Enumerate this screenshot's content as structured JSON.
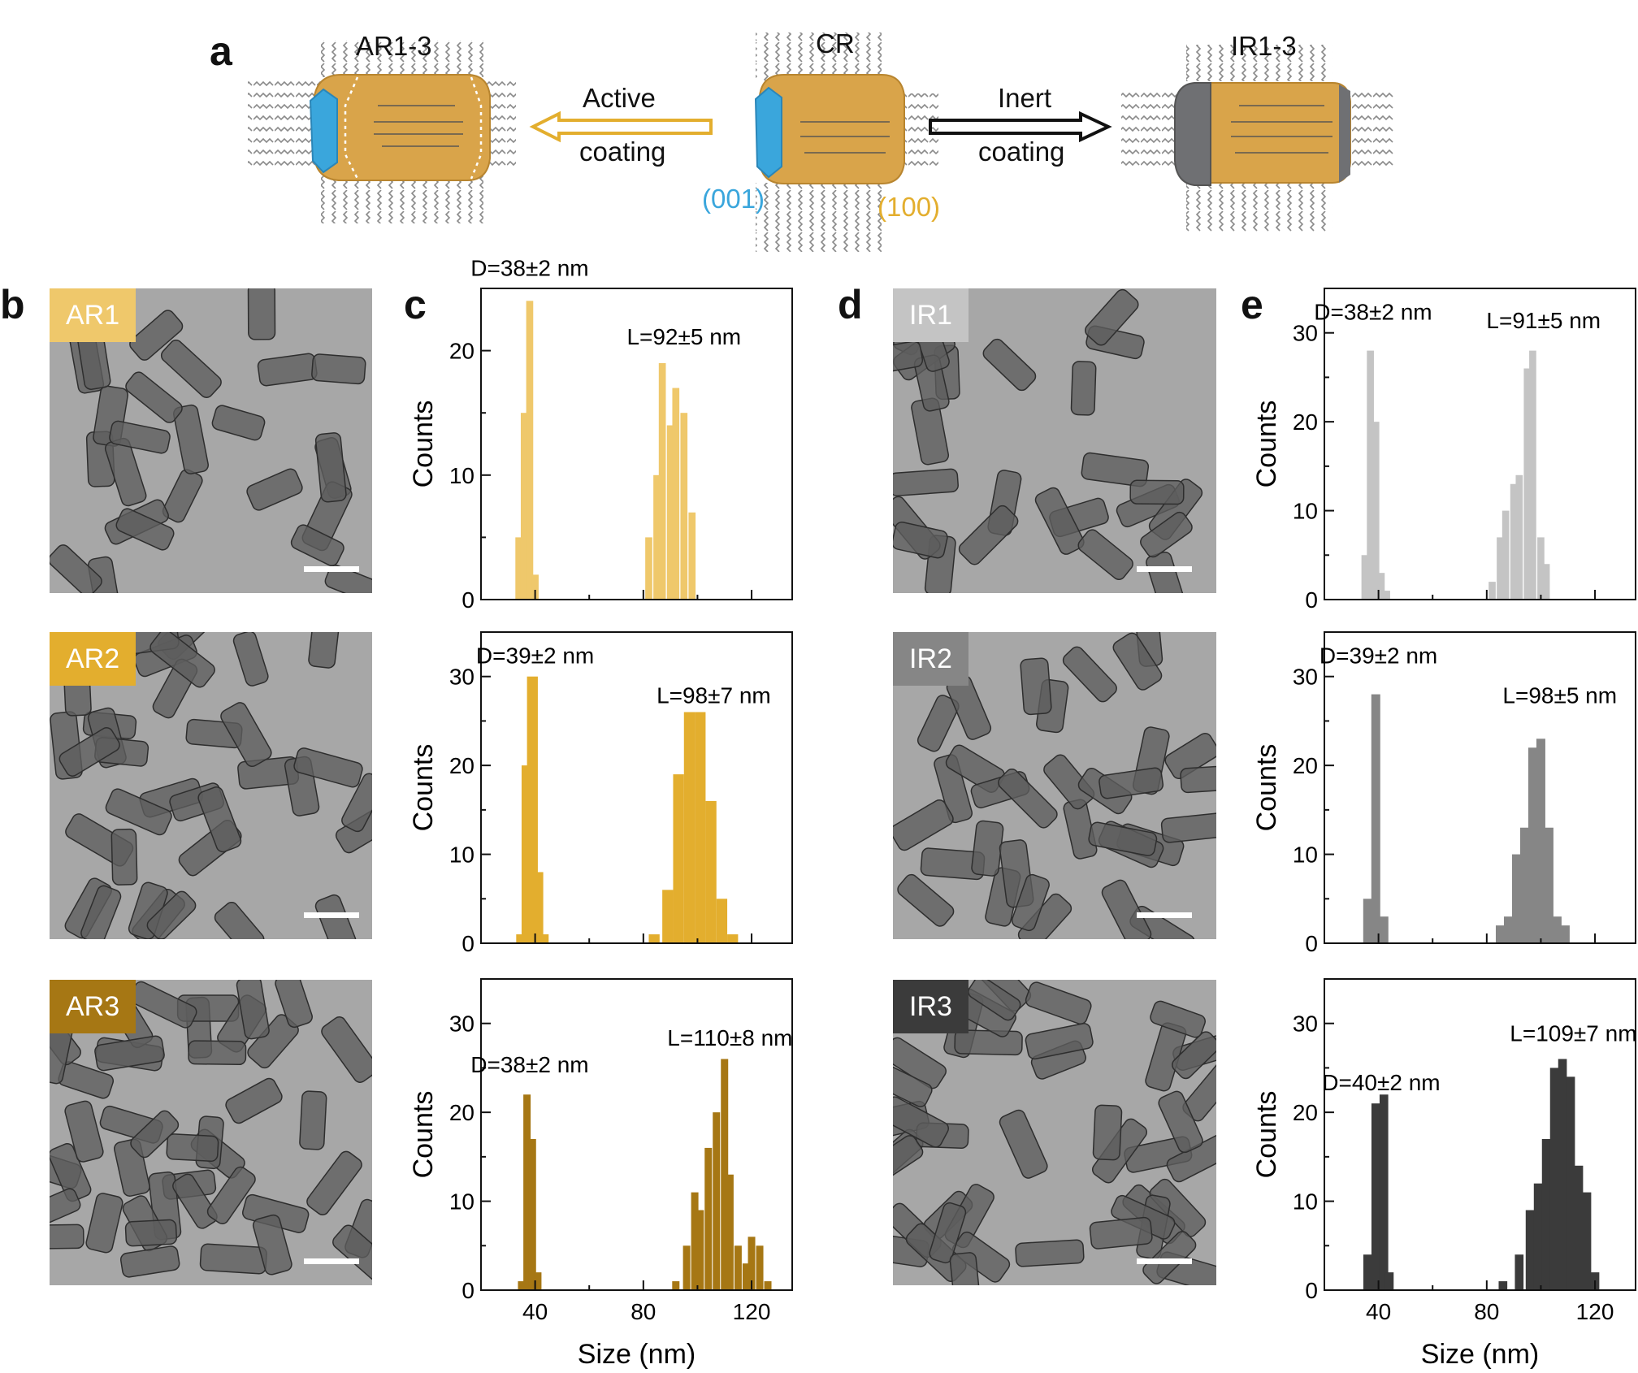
{
  "panel_labels": [
    "a",
    "b",
    "c",
    "d",
    "e"
  ],
  "diagram": {
    "left_title": "AR1-3",
    "center_title": "CR",
    "right_title": "IR1-3",
    "active_arrow": {
      "line1": "Active",
      "line2": "coating"
    },
    "inert_arrow": {
      "line1": "Inert",
      "line2": "coating"
    },
    "facet_001": "(001)",
    "facet_100": "(100)"
  },
  "colors": {
    "AR1": "#efc86b",
    "AR2": "#e3ae2e",
    "AR3": "#a67714",
    "IR1": "#c4c4c4",
    "IR2": "#868686",
    "IR3": "#3b3b3b",
    "rod_gold": "#d9a44a",
    "facet_blue": "#3aa6dc",
    "cap_grey": "#6f7073"
  },
  "tem_labels": {
    "AR1": "AR1",
    "AR2": "AR2",
    "AR3": "AR3",
    "IR1": "IR1",
    "IR2": "IR2",
    "IR3": "IR3"
  },
  "chart_data": [
    {
      "id": "AR1",
      "type": "bar",
      "color": "#efc86b",
      "xlabel": "",
      "ylabel": "Counts",
      "xlim": [
        20,
        135
      ],
      "ylim": [
        0,
        25
      ],
      "xticks": [
        40,
        80,
        120
      ],
      "yticks": [
        0,
        10,
        20
      ],
      "bin_width": 2.6,
      "bins": [
        [
          34,
          5
        ],
        [
          36,
          15
        ],
        [
          38,
          24
        ],
        [
          40,
          2
        ],
        [
          82,
          5
        ],
        [
          85,
          10
        ],
        [
          87,
          19
        ],
        [
          90,
          14
        ],
        [
          92,
          17
        ],
        [
          95,
          15
        ],
        [
          98,
          7
        ]
      ],
      "annotations": [
        {
          "text": "D=38±2 nm",
          "x": 38,
          "y": 26
        },
        {
          "text": "L=92±5 nm",
          "x": 95,
          "y": 20.5
        }
      ]
    },
    {
      "id": "AR2",
      "type": "bar",
      "color": "#e3ae2e",
      "xlabel": "",
      "ylabel": "Counts",
      "xlim": [
        20,
        135
      ],
      "ylim": [
        0,
        35
      ],
      "xticks": [
        40,
        80,
        120
      ],
      "yticks": [
        0,
        10,
        20,
        30
      ],
      "bin_width": 4,
      "bins": [
        [
          35,
          1
        ],
        [
          37,
          20
        ],
        [
          39,
          30
        ],
        [
          41,
          8
        ],
        [
          43,
          1
        ],
        [
          84,
          1
        ],
        [
          89,
          6
        ],
        [
          93,
          19
        ],
        [
          97,
          26
        ],
        [
          101,
          26
        ],
        [
          105,
          16
        ],
        [
          109,
          5
        ],
        [
          113,
          1
        ]
      ],
      "annotations": [
        {
          "text": "D=39±2 nm",
          "x": 40,
          "y": 31.5
        },
        {
          "text": "L=98±7 nm",
          "x": 106,
          "y": 27
        }
      ]
    },
    {
      "id": "AR3",
      "type": "bar",
      "color": "#a67714",
      "xlabel": "Size (nm)",
      "ylabel": "Counts",
      "xlim": [
        20,
        135
      ],
      "ylim": [
        0,
        35
      ],
      "xticks": [
        40,
        80,
        120
      ],
      "yticks": [
        0,
        10,
        20,
        30
      ],
      "bin_width": 2.7,
      "bins": [
        [
          35,
          1
        ],
        [
          37,
          22
        ],
        [
          39,
          17
        ],
        [
          41,
          2
        ],
        [
          92,
          1
        ],
        [
          96,
          5
        ],
        [
          99,
          11
        ],
        [
          101,
          9
        ],
        [
          104,
          16
        ],
        [
          107,
          20
        ],
        [
          110,
          26
        ],
        [
          112,
          13
        ],
        [
          115,
          5
        ],
        [
          118,
          3
        ],
        [
          120,
          6
        ],
        [
          123,
          5
        ],
        [
          126,
          1
        ]
      ],
      "annotations": [
        {
          "text": "D=38±2 nm",
          "x": 38,
          "y": 24.5
        },
        {
          "text": "L=110±8 nm",
          "x": 112,
          "y": 27.5
        }
      ]
    },
    {
      "id": "IR1",
      "type": "bar",
      "color": "#c4c4c4",
      "xlabel": "",
      "ylabel": "Counts",
      "xlim": [
        20,
        135
      ],
      "ylim": [
        0,
        35
      ],
      "xticks": [
        40,
        80,
        120
      ],
      "yticks": [
        0,
        10,
        20,
        30
      ],
      "bin_width": 2.6,
      "bins": [
        [
          35,
          5
        ],
        [
          37,
          28
        ],
        [
          39,
          20
        ],
        [
          41,
          3
        ],
        [
          43,
          1
        ],
        [
          82,
          2
        ],
        [
          85,
          7
        ],
        [
          87,
          10
        ],
        [
          90,
          13
        ],
        [
          92,
          14
        ],
        [
          95,
          26
        ],
        [
          97,
          28
        ],
        [
          100,
          7
        ],
        [
          102,
          4
        ]
      ],
      "annotations": [
        {
          "text": "D=38±2 nm",
          "x": 38,
          "y": 31.5
        },
        {
          "text": "L=91±5 nm",
          "x": 101,
          "y": 30.5
        }
      ]
    },
    {
      "id": "IR2",
      "type": "bar",
      "color": "#868686",
      "xlabel": "",
      "ylabel": "Counts",
      "xlim": [
        20,
        135
      ],
      "ylim": [
        0,
        35
      ],
      "xticks": [
        40,
        80,
        120
      ],
      "yticks": [
        0,
        10,
        20,
        30
      ],
      "bin_width": 3.3,
      "bins": [
        [
          36,
          5
        ],
        [
          39,
          28
        ],
        [
          42,
          3
        ],
        [
          85,
          2
        ],
        [
          88,
          3
        ],
        [
          91,
          10
        ],
        [
          94,
          13
        ],
        [
          97,
          22
        ],
        [
          100,
          23
        ],
        [
          103,
          13
        ],
        [
          106,
          3
        ],
        [
          109,
          2
        ]
      ],
      "annotations": [
        {
          "text": "D=39±2 nm",
          "x": 40,
          "y": 31.5
        },
        {
          "text": "L=98±5 nm",
          "x": 107,
          "y": 27
        }
      ]
    },
    {
      "id": "IR3",
      "type": "bar",
      "color": "#3b3b3b",
      "xlabel": "Size (nm)",
      "ylabel": "Counts",
      "xlim": [
        20,
        135
      ],
      "ylim": [
        0,
        35
      ],
      "xticks": [
        40,
        80,
        120
      ],
      "yticks": [
        0,
        10,
        20,
        30
      ],
      "bin_width": 3.2,
      "bins": [
        [
          36,
          4
        ],
        [
          39,
          21
        ],
        [
          42,
          22
        ],
        [
          44,
          2
        ],
        [
          86,
          1
        ],
        [
          92,
          4
        ],
        [
          96,
          9
        ],
        [
          99,
          12
        ],
        [
          102,
          17
        ],
        [
          105,
          25
        ],
        [
          108,
          26
        ],
        [
          111,
          24
        ],
        [
          114,
          14
        ],
        [
          117,
          11
        ],
        [
          120,
          2
        ]
      ],
      "annotations": [
        {
          "text": "D=40±2 nm",
          "x": 41,
          "y": 22.5
        },
        {
          "text": "L=109±7 nm",
          "x": 112,
          "y": 28
        }
      ]
    }
  ]
}
